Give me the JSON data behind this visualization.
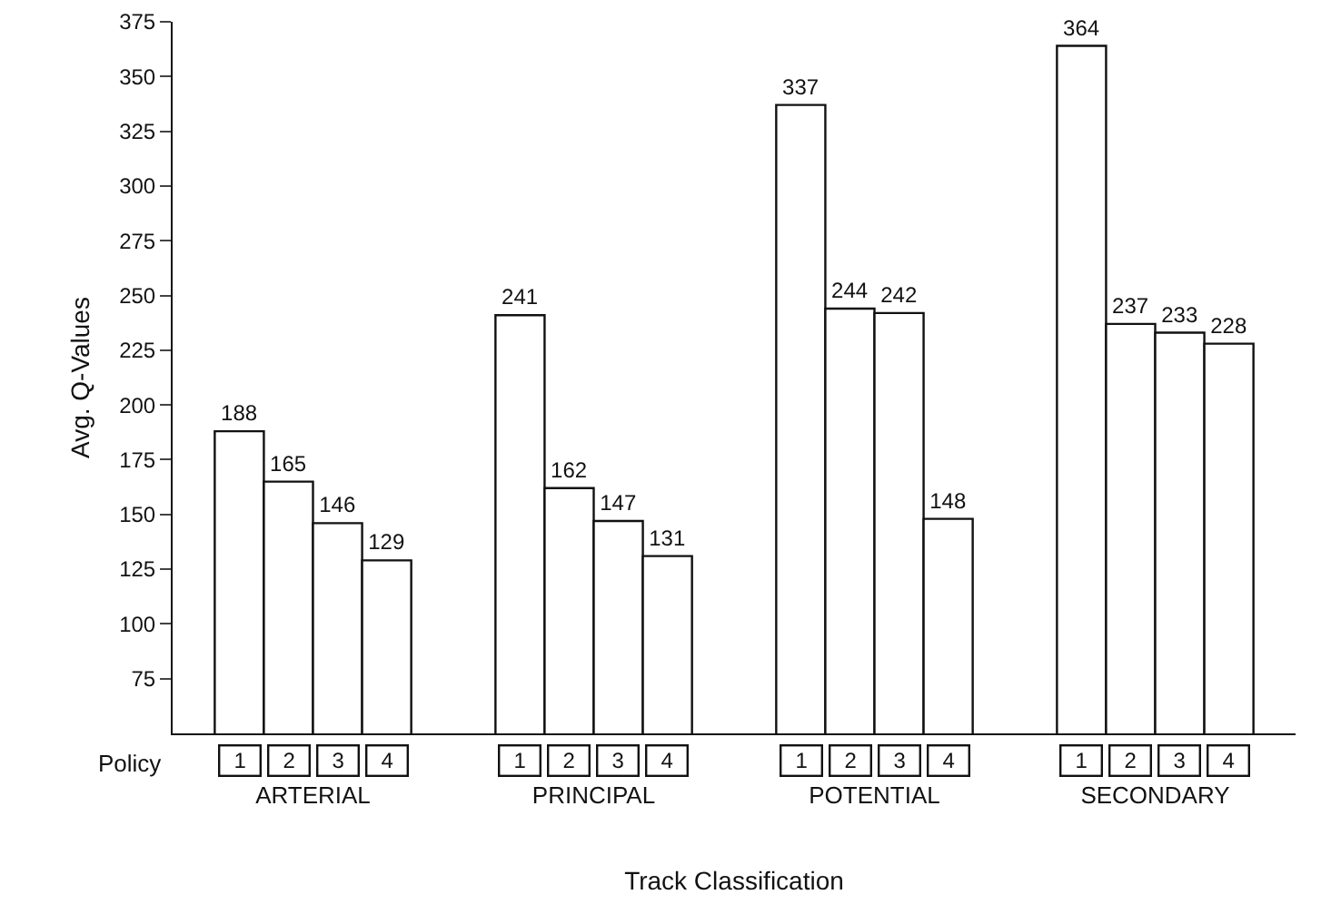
{
  "chart_data": {
    "type": "bar",
    "xlabel": "Track Classification",
    "ylabel": "Avg. Q-Values",
    "legend_title": "Policy",
    "categories": [
      "ARTERIAL",
      "PRINCIPAL",
      "POTENTIAL",
      "SECONDARY"
    ],
    "series": [
      {
        "name": "1",
        "color": "#ffffff",
        "values": [
          188,
          241,
          337,
          364
        ]
      },
      {
        "name": "2",
        "color": "#ffffff",
        "values": [
          165,
          162,
          244,
          237
        ]
      },
      {
        "name": "3",
        "color": "#ffffff",
        "values": [
          146,
          147,
          242,
          233
        ]
      },
      {
        "name": "4",
        "color": "#ffffff",
        "values": [
          129,
          131,
          148,
          228
        ]
      }
    ],
    "ylim": [
      50,
      375
    ],
    "yticks": [
      75,
      100,
      125,
      150,
      175,
      200,
      225,
      250,
      275,
      300,
      325,
      350,
      375
    ],
    "data_labels": true,
    "grid": false,
    "legend": "bottom"
  }
}
